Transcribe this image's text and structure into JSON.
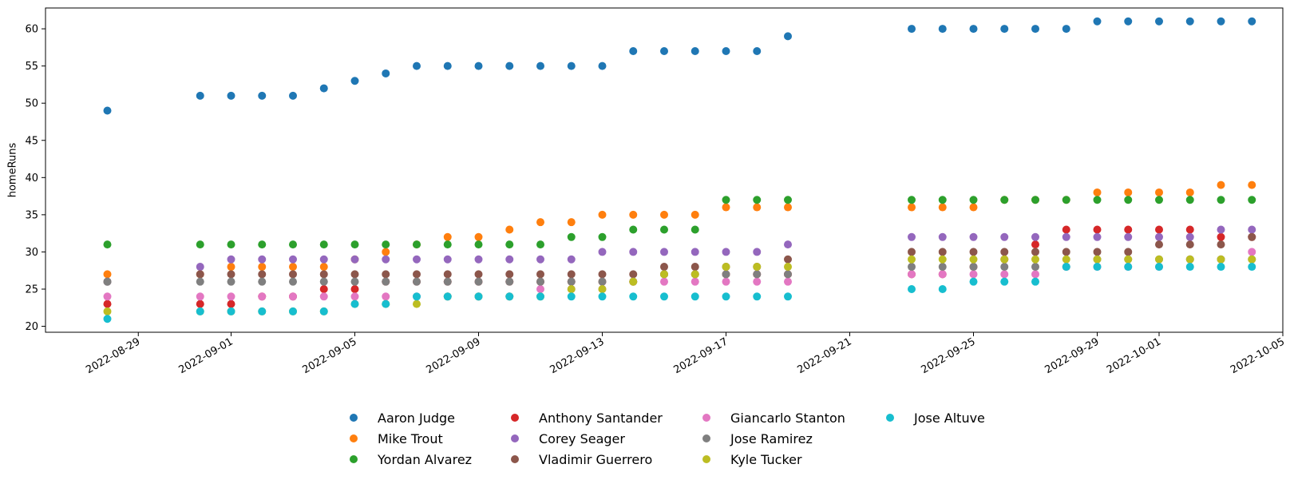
{
  "chart_data": {
    "type": "scatter",
    "title": "",
    "xlabel": "",
    "ylabel": "homeRuns",
    "x_type": "date",
    "xlim": [
      "2022-08-26",
      "2022-10-05"
    ],
    "ylim": [
      19.2,
      62.8
    ],
    "x_ticks": [
      "2022-08-29",
      "2022-09-01",
      "2022-09-05",
      "2022-09-09",
      "2022-09-13",
      "2022-09-17",
      "2022-09-21",
      "2022-09-25",
      "2022-09-29",
      "2022-10-01",
      "2022-10-05"
    ],
    "y_ticks": [
      20,
      25,
      30,
      35,
      40,
      45,
      50,
      55,
      60
    ],
    "grid": false,
    "legend_position": "below",
    "x": [
      "2022-08-28",
      "2022-08-31",
      "2022-09-01",
      "2022-09-02",
      "2022-09-03",
      "2022-09-04",
      "2022-09-05",
      "2022-09-06",
      "2022-09-07",
      "2022-09-08",
      "2022-09-09",
      "2022-09-10",
      "2022-09-11",
      "2022-09-12",
      "2022-09-13",
      "2022-09-14",
      "2022-09-15",
      "2022-09-16",
      "2022-09-17",
      "2022-09-18",
      "2022-09-19",
      "2022-09-23",
      "2022-09-24",
      "2022-09-25",
      "2022-09-26",
      "2022-09-27",
      "2022-09-28",
      "2022-09-29",
      "2022-09-30",
      "2022-10-01",
      "2022-10-02",
      "2022-10-03",
      "2022-10-04"
    ],
    "series": [
      {
        "name": "Aaron Judge",
        "color": "#1f77b4",
        "values": [
          49,
          51,
          51,
          51,
          51,
          52,
          53,
          54,
          55,
          55,
          55,
          55,
          55,
          55,
          55,
          57,
          57,
          57,
          57,
          57,
          59,
          60,
          60,
          60,
          60,
          60,
          60,
          61,
          61,
          61,
          61,
          61,
          61
        ]
      },
      {
        "name": "Mike Trout",
        "color": "#ff7f0e",
        "values": [
          27,
          27,
          28,
          28,
          28,
          28,
          29,
          30,
          31,
          32,
          32,
          33,
          34,
          34,
          35,
          35,
          35,
          35,
          36,
          36,
          36,
          36,
          36,
          36,
          37,
          37,
          37,
          38,
          38,
          38,
          38,
          39,
          39
        ]
      },
      {
        "name": "Yordan Alvarez",
        "color": "#2ca02c",
        "values": [
          31,
          31,
          31,
          31,
          31,
          31,
          31,
          31,
          31,
          31,
          31,
          31,
          31,
          32,
          32,
          33,
          33,
          33,
          37,
          37,
          37,
          37,
          37,
          37,
          37,
          37,
          37,
          37,
          37,
          37,
          37,
          37,
          37
        ]
      },
      {
        "name": "Anthony Santander",
        "color": "#d62728",
        "values": [
          23,
          23,
          23,
          24,
          24,
          25,
          25,
          26,
          26,
          26,
          26,
          26,
          26,
          26,
          26,
          26,
          27,
          27,
          27,
          27,
          27,
          27,
          27,
          28,
          29,
          31,
          33,
          33,
          33,
          33,
          33,
          32,
          32
        ]
      },
      {
        "name": "Corey Seager",
        "color": "#9467bd",
        "values": [
          26,
          28,
          29,
          29,
          29,
          29,
          29,
          29,
          29,
          29,
          29,
          29,
          29,
          29,
          30,
          30,
          30,
          30,
          30,
          30,
          31,
          32,
          32,
          32,
          32,
          32,
          32,
          32,
          32,
          32,
          32,
          33,
          33
        ]
      },
      {
        "name": "Vladimir Guerrero",
        "color": "#8c564b",
        "values": [
          26,
          27,
          27,
          27,
          27,
          27,
          27,
          27,
          27,
          27,
          27,
          27,
          27,
          27,
          27,
          27,
          28,
          28,
          28,
          28,
          29,
          30,
          30,
          30,
          30,
          30,
          30,
          30,
          30,
          31,
          31,
          31,
          32
        ]
      },
      {
        "name": "Giancarlo Stanton",
        "color": "#e377c2",
        "values": [
          24,
          24,
          24,
          24,
          24,
          24,
          24,
          24,
          24,
          24,
          24,
          24,
          25,
          25,
          25,
          26,
          26,
          26,
          26,
          26,
          26,
          27,
          27,
          27,
          27,
          27,
          28,
          28,
          28,
          28,
          29,
          29,
          30
        ]
      },
      {
        "name": "Jose Ramirez",
        "color": "#7f7f7f",
        "values": [
          26,
          26,
          26,
          26,
          26,
          26,
          26,
          26,
          26,
          26,
          26,
          26,
          26,
          26,
          26,
          26,
          27,
          27,
          27,
          27,
          27,
          28,
          28,
          28,
          28,
          28,
          28,
          29,
          29,
          29,
          29,
          29,
          29
        ]
      },
      {
        "name": "Kyle Tucker",
        "color": "#bcbd22",
        "values": [
          22,
          22,
          22,
          22,
          22,
          22,
          23,
          23,
          23,
          24,
          24,
          24,
          24,
          25,
          25,
          26,
          27,
          27,
          28,
          28,
          28,
          29,
          29,
          29,
          29,
          29,
          29,
          29,
          29,
          29,
          29,
          29,
          29
        ]
      },
      {
        "name": "Jose Altuve",
        "color": "#17becf",
        "values": [
          21,
          22,
          22,
          22,
          22,
          22,
          23,
          23,
          24,
          24,
          24,
          24,
          24,
          24,
          24,
          24,
          24,
          24,
          24,
          24,
          24,
          25,
          25,
          26,
          26,
          26,
          28,
          28,
          28,
          28,
          28,
          28,
          28
        ]
      }
    ]
  }
}
